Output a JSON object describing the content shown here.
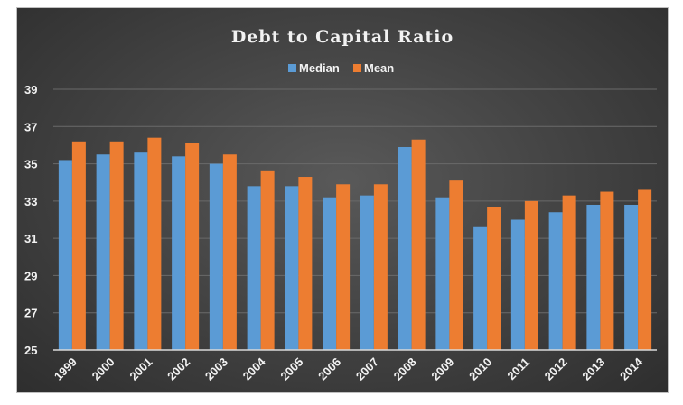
{
  "chart_data": {
    "type": "bar",
    "title": "Debt to Capital Ratio",
    "xlabel": "",
    "ylabel": "",
    "categories": [
      "1999",
      "2000",
      "2001",
      "2002",
      "2003",
      "2004",
      "2005",
      "2006",
      "2007",
      "2008",
      "2009",
      "2010",
      "2011",
      "2012",
      "2013",
      "2014"
    ],
    "series": [
      {
        "name": "Median",
        "color": "#5b9bd5",
        "values": [
          35.2,
          35.5,
          35.6,
          35.4,
          35.0,
          33.8,
          33.8,
          33.2,
          33.3,
          35.9,
          33.2,
          31.6,
          32.0,
          32.4,
          32.8,
          32.8
        ]
      },
      {
        "name": "Mean",
        "color": "#ed7d31",
        "values": [
          36.2,
          36.2,
          36.4,
          36.1,
          35.5,
          34.6,
          34.3,
          33.9,
          33.9,
          36.3,
          34.1,
          32.7,
          33.0,
          33.3,
          33.5,
          33.6
        ]
      }
    ],
    "ylim": [
      25,
      39
    ],
    "yticks": [
      25,
      27,
      29,
      31,
      33,
      35,
      37,
      39
    ],
    "grid": true,
    "legend_position": "top"
  }
}
